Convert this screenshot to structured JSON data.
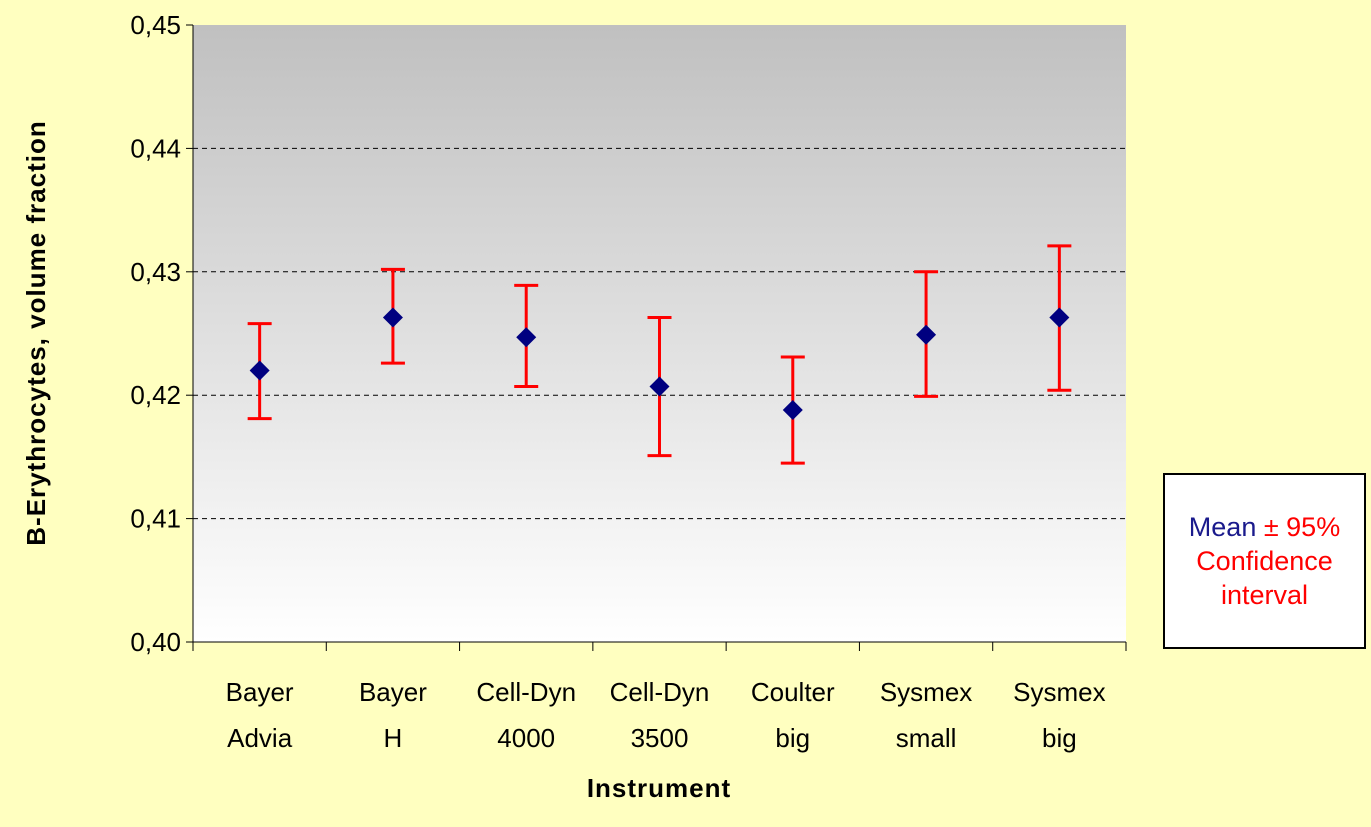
{
  "chart_data": {
    "type": "scatter",
    "title": "",
    "xlabel": "Instrument",
    "ylabel": "B-Erythrocytes, volume fraction",
    "ylim": [
      0.4,
      0.45
    ],
    "yticks": [
      "0,40",
      "0,41",
      "0,42",
      "0,43",
      "0,44",
      "0,45"
    ],
    "ytick_values": [
      0.4,
      0.41,
      0.42,
      0.43,
      0.44,
      0.45
    ],
    "grid": "horizontal dashed",
    "categories": [
      [
        "Bayer",
        "Advia"
      ],
      [
        "Bayer",
        "H"
      ],
      [
        "Cell-Dyn",
        "4000"
      ],
      [
        "Cell-Dyn",
        "3500"
      ],
      [
        "Coulter",
        "big"
      ],
      [
        "Sysmex",
        "small"
      ],
      [
        "Sysmex",
        "big"
      ]
    ],
    "series": [
      {
        "values": [
          0.422,
          0.4263,
          0.4247,
          0.4207,
          0.4188,
          0.4249,
          0.4263
        ],
        "lower": [
          0.4181,
          0.4226,
          0.4207,
          0.4151,
          0.4145,
          0.4199,
          0.4204
        ],
        "upper": [
          0.4258,
          0.4302,
          0.4289,
          0.4263,
          0.4231,
          0.43,
          0.4321
        ]
      }
    ],
    "legend": {
      "placement": "right",
      "line1_prefix": "Mean ",
      "line1_pm": "± 95%",
      "line2": "Confidence",
      "line3": "interval"
    },
    "colors": {
      "marker": "#000080",
      "errorbar": "#ff0000",
      "background": "#ffffc0",
      "plot_top": "#c0c0c0",
      "plot_bottom": "#ffffff"
    }
  }
}
